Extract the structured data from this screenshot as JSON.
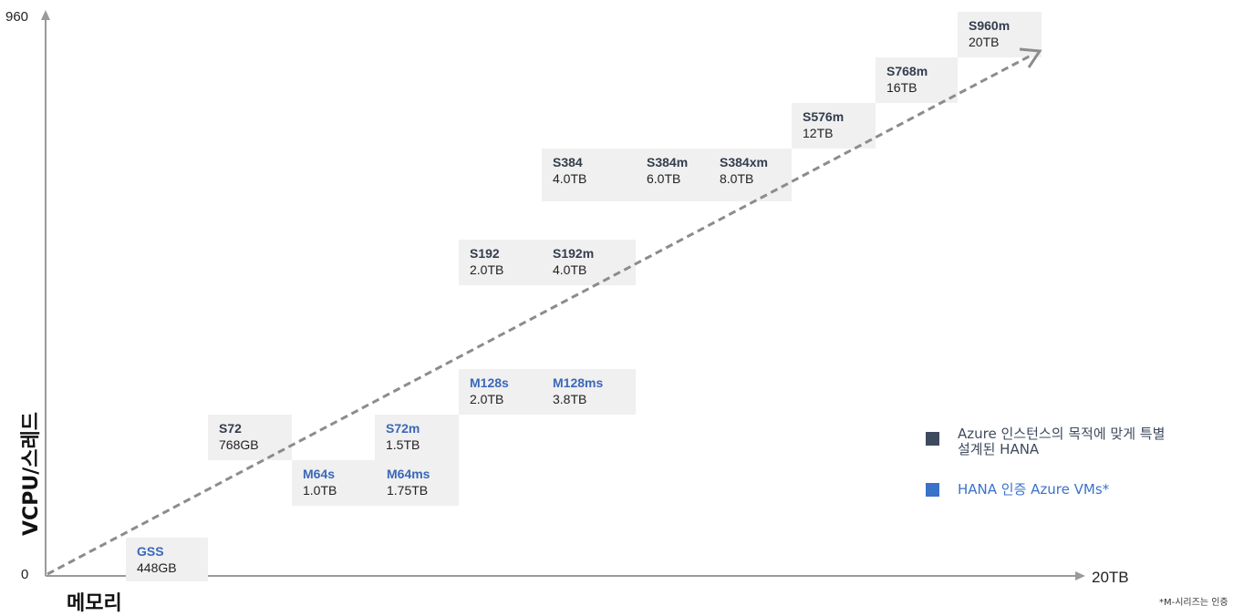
{
  "axes": {
    "y_max_label": "960",
    "origin_label": "0",
    "x_max_label": "20TB",
    "y_title": "VCPU/스레드",
    "x_title": "메모리"
  },
  "colors": {
    "hli_name": "#333d4d",
    "vm_name": "#3b67b8",
    "box_bg": "#f0f0f0",
    "trend_line": "#8c8c8c"
  },
  "groups": [
    {
      "id": "gss",
      "type": "vm",
      "items": [
        {
          "name": "GSS",
          "mem": "448GB"
        }
      ]
    },
    {
      "id": "s72",
      "type": "hli",
      "items": [
        {
          "name": "S72",
          "mem": "768GB"
        }
      ]
    },
    {
      "id": "m64",
      "type": "vm",
      "items": [
        {
          "name": "M64s",
          "mem": "1.0TB"
        },
        {
          "name": "M64ms",
          "mem": "1.75TB"
        }
      ]
    },
    {
      "id": "s72m",
      "type": "vm",
      "items": [
        {
          "name": "S72m",
          "mem": "1.5TB"
        }
      ]
    },
    {
      "id": "m128",
      "type": "vm",
      "items": [
        {
          "name": "M128s",
          "mem": "2.0TB"
        },
        {
          "name": "M128ms",
          "mem": "3.8TB"
        }
      ]
    },
    {
      "id": "s192",
      "type": "hli",
      "items": [
        {
          "name": "S192",
          "mem": "2.0TB"
        },
        {
          "name": "S192m",
          "mem": "4.0TB"
        }
      ]
    },
    {
      "id": "s384",
      "type": "hli",
      "items": [
        {
          "name": "S384",
          "mem": "4.0TB"
        },
        {
          "name": "S384m",
          "mem": "6.0TB"
        },
        {
          "name": "S384xm",
          "mem": "8.0TB"
        }
      ]
    },
    {
      "id": "s576m",
      "type": "hli",
      "items": [
        {
          "name": "S576m",
          "mem": "12TB"
        }
      ]
    },
    {
      "id": "s768m",
      "type": "hli",
      "items": [
        {
          "name": "S768m",
          "mem": "16TB"
        }
      ]
    },
    {
      "id": "s960m",
      "type": "hli",
      "items": [
        {
          "name": "S960m",
          "mem": "20TB"
        }
      ]
    }
  ],
  "legend": {
    "hli_line1": "Azure 인스턴스의 목적에 맞게 특별",
    "hli_line2": "설계된 HANA",
    "vm_label": "HANA 인증 Azure VMs*",
    "hli_color": "#3e4a5e",
    "vm_color": "#3b72c9"
  },
  "footnote": "*M-시리즈는 인증"
}
